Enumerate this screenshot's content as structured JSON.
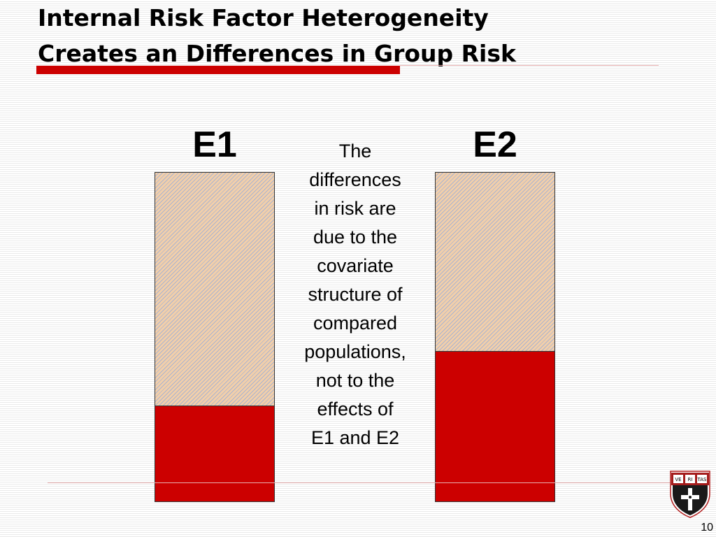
{
  "slide": {
    "title_line1": "Internal Risk Factor Heterogeneity",
    "title_line2": "Creates an Differences in Group Risk",
    "page_number": "10"
  },
  "colors": {
    "accent_red": "#cc0000",
    "hatch_peach": "#f2cfaa",
    "hatch_blue": "#aab3cf"
  },
  "bars": [
    {
      "label": "E1",
      "risk_fraction": 0.29
    },
    {
      "label": "E2",
      "risk_fraction": 0.455
    }
  ],
  "note_lines": [
    "The",
    "differences",
    "in risk are",
    "due to the",
    "covariate",
    "structure of",
    "compared",
    "populations,",
    "not to the",
    "effects of",
    "E1 and E2"
  ],
  "logo": {
    "icon": "harvard-shield-icon",
    "motto": [
      "VE",
      "RI",
      "TAS"
    ]
  }
}
